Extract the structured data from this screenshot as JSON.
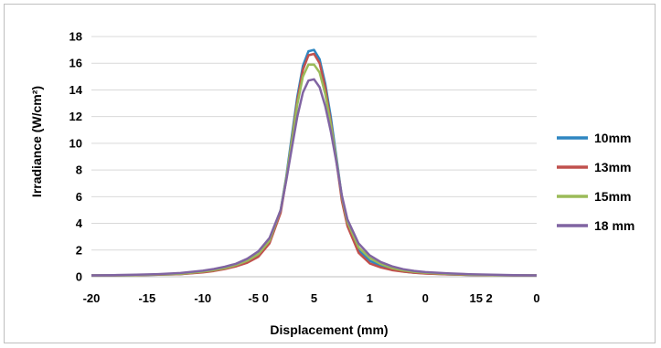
{
  "chart_data": {
    "type": "line",
    "title": "",
    "xlabel": "Displacement (mm)",
    "ylabel": "Irradiance (W/cm²)",
    "ylim": [
      0,
      18
    ],
    "xlim": [
      -20,
      20
    ],
    "y_ticks": [
      "0",
      "2",
      "4",
      "6",
      "8",
      "10",
      "12",
      "14",
      "16",
      "18"
    ],
    "x_tick_labels": [
      "-20",
      "-15",
      "-10",
      "-5 0",
      "5",
      "1",
      "0",
      "15 2",
      "0"
    ],
    "grid": "horizontal",
    "legend_position": "right",
    "x": [
      -20,
      -18,
      -16,
      -14,
      -12,
      -10,
      -9,
      -8,
      -7,
      -6,
      -5,
      -4,
      -3,
      -2.5,
      -2,
      -1.5,
      -1,
      -0.5,
      0,
      0.5,
      1,
      1.5,
      2,
      2.5,
      3,
      4,
      5,
      6,
      7,
      8,
      9,
      10,
      12,
      14,
      16,
      18,
      20
    ],
    "series": [
      {
        "name": "10mm",
        "color": "#2e86c1",
        "values": [
          0.1,
          0.1,
          0.12,
          0.15,
          0.2,
          0.35,
          0.45,
          0.6,
          0.8,
          1.1,
          1.6,
          2.6,
          5.0,
          7.5,
          10.5,
          13.5,
          15.8,
          16.9,
          17.0,
          16.3,
          14.5,
          12.0,
          9.0,
          6.0,
          4.0,
          2.0,
          1.2,
          0.8,
          0.55,
          0.4,
          0.3,
          0.25,
          0.18,
          0.14,
          0.12,
          0.1,
          0.1
        ]
      },
      {
        "name": "13mm",
        "color": "#c0504d",
        "values": [
          0.1,
          0.1,
          0.12,
          0.15,
          0.2,
          0.33,
          0.43,
          0.58,
          0.78,
          1.05,
          1.5,
          2.5,
          4.8,
          7.3,
          10.2,
          13.2,
          15.5,
          16.6,
          16.7,
          16.0,
          14.2,
          11.6,
          8.7,
          5.7,
          3.8,
          1.8,
          1.0,
          0.7,
          0.5,
          0.38,
          0.3,
          0.24,
          0.18,
          0.14,
          0.12,
          0.1,
          0.1
        ]
      },
      {
        "name": "15mm",
        "color": "#9bbb59",
        "values": [
          0.1,
          0.11,
          0.13,
          0.17,
          0.22,
          0.38,
          0.5,
          0.65,
          0.88,
          1.2,
          1.7,
          2.7,
          5.0,
          7.4,
          10.1,
          12.9,
          15.0,
          15.9,
          15.9,
          15.3,
          13.7,
          11.4,
          8.8,
          6.0,
          4.1,
          2.2,
          1.4,
          0.95,
          0.65,
          0.48,
          0.37,
          0.3,
          0.21,
          0.16,
          0.13,
          0.11,
          0.1
        ]
      },
      {
        "name": "18 mm",
        "color": "#8064a2",
        "values": [
          0.1,
          0.12,
          0.15,
          0.2,
          0.28,
          0.45,
          0.58,
          0.75,
          0.98,
          1.35,
          1.9,
          2.9,
          5.0,
          7.2,
          9.6,
          12.0,
          13.8,
          14.7,
          14.8,
          14.2,
          12.8,
          10.9,
          8.6,
          6.1,
          4.3,
          2.5,
          1.6,
          1.1,
          0.78,
          0.57,
          0.44,
          0.35,
          0.25,
          0.19,
          0.15,
          0.12,
          0.1
        ]
      }
    ]
  }
}
